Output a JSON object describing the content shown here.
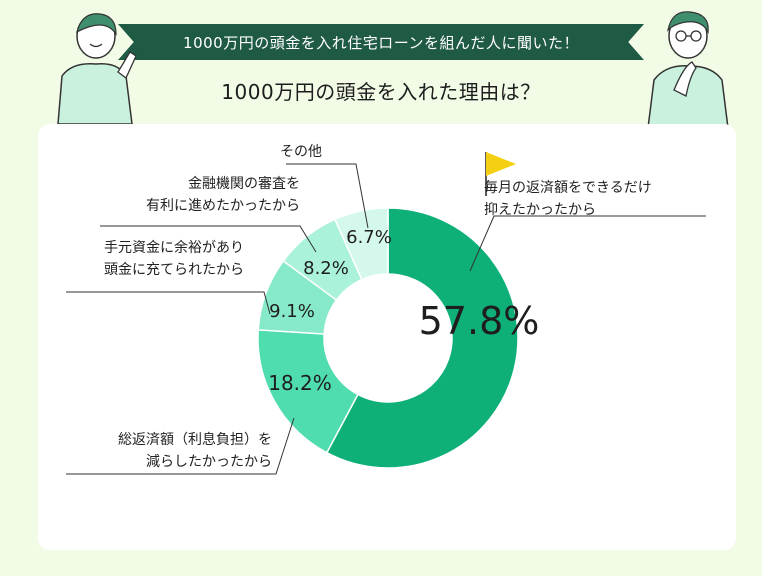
{
  "header": {
    "banner": "1000万円の頭金を入れ住宅ローンを組んだ人に聞いた！",
    "subtitle": "1000万円の頭金を入れた理由は？"
  },
  "colors": {
    "banner": "#1f5a45",
    "background": "#f2fbe6",
    "card": "#ffffff",
    "flag": "#f5cf12",
    "slices": [
      "#0fb078",
      "#4fdcaf",
      "#86e9c9",
      "#aaf2da",
      "#d4f8ec"
    ]
  },
  "icons": [
    "person-pointing-icon",
    "person-thinking-icon",
    "flag-icon"
  ],
  "chart_data": {
    "type": "pie",
    "donut": true,
    "unit": "%",
    "categories": [
      "毎月の返済額をできるだけ抑えたかったから",
      "総返済額（利息負担）を減らしたかったから",
      "手元資金に余裕があり頭金に充てられたから",
      "金融機関の審査を有利に進めたかったから",
      "その他"
    ],
    "values": [
      57.8,
      18.2,
      9.1,
      8.2,
      6.7
    ],
    "value_labels": [
      "57.8%",
      "18.2%",
      "9.1%",
      "8.2%",
      "6.7%"
    ],
    "label_lines": [
      [
        "毎月の返済額をできるだけ",
        "抑えたかったから"
      ],
      [
        "総返済額（利息負担）を",
        "減らしたかったから"
      ],
      [
        "手元資金に余裕があり",
        "頭金に充てられたから"
      ],
      [
        "金融機関の審査を",
        "有利に進めたかったから"
      ],
      [
        "その他"
      ]
    ],
    "highlight": "毎月の返済額をできるだけ抑えたかったから"
  }
}
